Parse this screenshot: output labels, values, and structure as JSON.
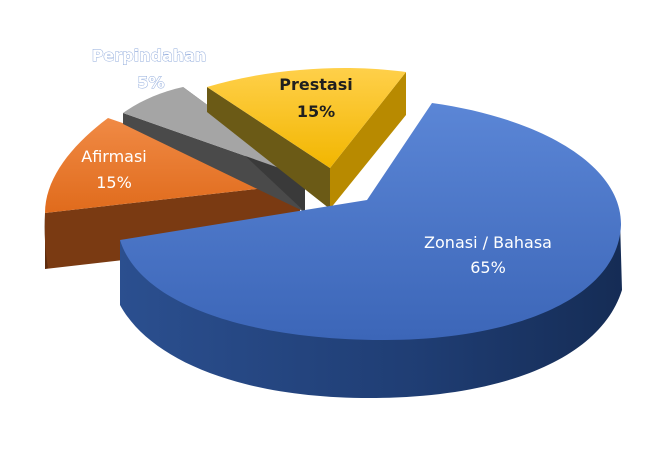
{
  "chart_data": {
    "type": "pie",
    "style": "3d-exploded",
    "slices": [
      {
        "label": "Zonasi / Bahasa",
        "value": 65,
        "value_label": "65%",
        "color": "#4472c4"
      },
      {
        "label": "Prestasi",
        "value": 15,
        "value_label": "15%",
        "color": "#ffc000"
      },
      {
        "label": "Perpindahan",
        "value": 5,
        "value_label": "5%",
        "color": "#a5a5a5"
      },
      {
        "label": "Afirmasi",
        "value": 15,
        "value_label": "15%",
        "color": "#ed7d31"
      }
    ],
    "legend": "none"
  }
}
